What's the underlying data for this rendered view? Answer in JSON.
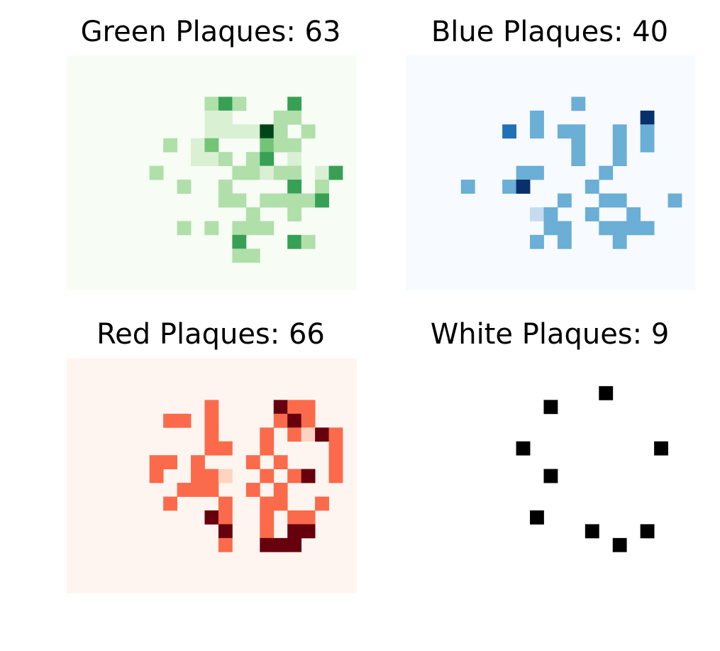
{
  "chart_data": [
    {
      "type": "heatmap",
      "title": "Green Plaques: 63",
      "colormap": "Greens",
      "background": "#f7fcf5",
      "cells": [
        [
          9,
          1,
          2
        ],
        [
          10,
          1,
          4
        ],
        [
          11,
          1,
          2
        ],
        [
          15,
          1,
          4
        ],
        [
          9,
          2,
          1
        ],
        [
          10,
          2,
          1
        ],
        [
          14,
          2,
          2
        ],
        [
          15,
          2,
          2
        ],
        [
          9,
          3,
          1
        ],
        [
          10,
          3,
          1
        ],
        [
          11,
          3,
          1
        ],
        [
          12,
          3,
          1
        ],
        [
          13,
          3,
          6
        ],
        [
          14,
          3,
          2
        ],
        [
          16,
          3,
          2
        ],
        [
          6,
          4,
          2
        ],
        [
          8,
          4,
          1
        ],
        [
          9,
          4,
          3
        ],
        [
          13,
          4,
          3
        ],
        [
          14,
          4,
          2
        ],
        [
          15,
          4,
          2
        ],
        [
          8,
          5,
          1
        ],
        [
          9,
          5,
          1
        ],
        [
          10,
          5,
          2
        ],
        [
          12,
          5,
          2
        ],
        [
          13,
          5,
          4
        ],
        [
          15,
          5,
          1
        ],
        [
          5,
          6,
          2
        ],
        [
          11,
          6,
          2
        ],
        [
          12,
          6,
          2
        ],
        [
          13,
          6,
          1
        ],
        [
          14,
          6,
          2
        ],
        [
          15,
          6,
          2
        ],
        [
          17,
          6,
          1
        ],
        [
          18,
          6,
          4
        ],
        [
          7,
          7,
          2
        ],
        [
          10,
          7,
          2
        ],
        [
          15,
          7,
          4
        ],
        [
          17,
          7,
          2
        ],
        [
          10,
          8,
          2
        ],
        [
          11,
          8,
          2
        ],
        [
          13,
          8,
          2
        ],
        [
          14,
          8,
          2
        ],
        [
          15,
          8,
          2
        ],
        [
          16,
          8,
          2
        ],
        [
          17,
          8,
          4
        ],
        [
          12,
          9,
          2
        ],
        [
          15,
          9,
          2
        ],
        [
          7,
          10,
          2
        ],
        [
          9,
          10,
          2
        ],
        [
          11,
          10,
          2
        ],
        [
          12,
          10,
          2
        ],
        [
          13,
          10,
          2
        ],
        [
          11,
          11,
          4
        ],
        [
          15,
          11,
          4
        ],
        [
          16,
          11,
          2
        ],
        [
          11,
          12,
          2
        ],
        [
          12,
          12,
          2
        ]
      ],
      "palette": [
        "#f7fcf5",
        "#d9f0d3",
        "#b0dfaa",
        "#73c476",
        "#37a055",
        "#127a3a",
        "#00441b"
      ]
    },
    {
      "type": "heatmap",
      "title": "Blue Plaques: 40",
      "colormap": "Blues",
      "background": "#f7fbff",
      "cells": [
        [
          11,
          1,
          3
        ],
        [
          8,
          2,
          3
        ],
        [
          16,
          2,
          6
        ],
        [
          6,
          3,
          4
        ],
        [
          8,
          3,
          3
        ],
        [
          10,
          3,
          3
        ],
        [
          11,
          3,
          3
        ],
        [
          14,
          3,
          3
        ],
        [
          16,
          3,
          3
        ],
        [
          11,
          4,
          3
        ],
        [
          14,
          4,
          3
        ],
        [
          16,
          4,
          3
        ],
        [
          11,
          5,
          3
        ],
        [
          14,
          5,
          3
        ],
        [
          7,
          6,
          3
        ],
        [
          8,
          6,
          3
        ],
        [
          13,
          6,
          3
        ],
        [
          3,
          7,
          3
        ],
        [
          6,
          7,
          3
        ],
        [
          7,
          7,
          6
        ],
        [
          12,
          7,
          3
        ],
        [
          10,
          8,
          3
        ],
        [
          13,
          8,
          3
        ],
        [
          14,
          8,
          3
        ],
        [
          18,
          8,
          3
        ],
        [
          8,
          9,
          1
        ],
        [
          9,
          9,
          3
        ],
        [
          12,
          9,
          3
        ],
        [
          15,
          9,
          3
        ],
        [
          9,
          10,
          3
        ],
        [
          10,
          10,
          3
        ],
        [
          13,
          10,
          3
        ],
        [
          14,
          10,
          3
        ],
        [
          15,
          10,
          3
        ],
        [
          16,
          10,
          3
        ],
        [
          8,
          11,
          3
        ],
        [
          10,
          11,
          3
        ],
        [
          14,
          11,
          3
        ]
      ],
      "palette": [
        "#f7fbff",
        "#c6dbef",
        "#9ecae1",
        "#6baed6",
        "#2171b5",
        "#08519c",
        "#08306b"
      ]
    },
    {
      "type": "heatmap",
      "title": "Red Plaques: 66",
      "colormap": "Reds",
      "background": "#fff5f0",
      "cells": [
        [
          9,
          1,
          3
        ],
        [
          14,
          1,
          6
        ],
        [
          15,
          1,
          3
        ],
        [
          16,
          1,
          3
        ],
        [
          6,
          2,
          3
        ],
        [
          7,
          2,
          3
        ],
        [
          9,
          2,
          3
        ],
        [
          14,
          2,
          3
        ],
        [
          15,
          2,
          6
        ],
        [
          16,
          2,
          3
        ],
        [
          9,
          3,
          3
        ],
        [
          13,
          3,
          3
        ],
        [
          15,
          3,
          3
        ],
        [
          16,
          3,
          1
        ],
        [
          17,
          3,
          6
        ],
        [
          18,
          3,
          3
        ],
        [
          9,
          4,
          3
        ],
        [
          10,
          4,
          3
        ],
        [
          13,
          4,
          3
        ],
        [
          18,
          4,
          3
        ],
        [
          5,
          5,
          3
        ],
        [
          6,
          5,
          3
        ],
        [
          8,
          5,
          3
        ],
        [
          12,
          5,
          3
        ],
        [
          14,
          5,
          3
        ],
        [
          18,
          5,
          3
        ],
        [
          5,
          6,
          3
        ],
        [
          8,
          6,
          3
        ],
        [
          9,
          6,
          3
        ],
        [
          10,
          6,
          1
        ],
        [
          13,
          6,
          3
        ],
        [
          15,
          6,
          3
        ],
        [
          16,
          6,
          6
        ],
        [
          18,
          6,
          3
        ],
        [
          7,
          7,
          3
        ],
        [
          8,
          7,
          3
        ],
        [
          9,
          7,
          3
        ],
        [
          12,
          7,
          3
        ],
        [
          14,
          7,
          3
        ],
        [
          6,
          8,
          3
        ],
        [
          10,
          8,
          3
        ],
        [
          13,
          8,
          3
        ],
        [
          14,
          8,
          3
        ],
        [
          17,
          8,
          3
        ],
        [
          9,
          9,
          6
        ],
        [
          10,
          9,
          3
        ],
        [
          13,
          9,
          3
        ],
        [
          15,
          9,
          3
        ],
        [
          16,
          9,
          3
        ],
        [
          10,
          10,
          6
        ],
        [
          13,
          10,
          3
        ],
        [
          15,
          10,
          6
        ],
        [
          16,
          10,
          6
        ],
        [
          10,
          11,
          3
        ],
        [
          13,
          11,
          6
        ],
        [
          14,
          11,
          6
        ],
        [
          15,
          11,
          6
        ]
      ],
      "palette": [
        "#fff5f0",
        "#fdd4c2",
        "#fca082",
        "#fb6b4b",
        "#e32f27",
        "#b11218",
        "#67000d"
      ]
    },
    {
      "type": "heatmap",
      "title": "White Plaques: 9",
      "colormap": "Greys",
      "background": "#ffffff",
      "cells": [
        [
          13,
          0,
          6
        ],
        [
          9,
          1,
          6
        ],
        [
          7,
          4,
          6
        ],
        [
          17,
          4,
          6
        ],
        [
          9,
          6,
          6
        ],
        [
          8,
          9,
          6
        ],
        [
          12,
          10,
          6
        ],
        [
          14,
          11,
          6
        ],
        [
          16,
          10,
          6
        ]
      ],
      "palette": [
        "#ffffff",
        "#d9d9d9",
        "#bdbdbd",
        "#969696",
        "#636363",
        "#252525",
        "#000000"
      ]
    }
  ]
}
